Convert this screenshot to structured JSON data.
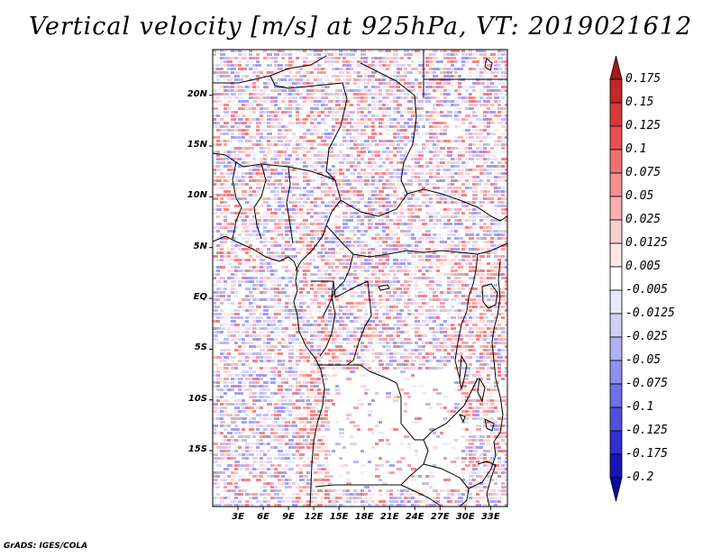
{
  "title": "Vertical velocity [m/s] at 925hPa, VT: 2019021612",
  "footer": "GrADS: IGES/COLA",
  "map": {
    "lat_labels": [
      "20N",
      "15N",
      "10N",
      "5N",
      "EQ",
      "5S",
      "10S",
      "15S"
    ],
    "lon_labels": [
      "3E",
      "6E",
      "9E",
      "12E",
      "15E",
      "18E",
      "21E",
      "24E",
      "27E",
      "30E",
      "33E"
    ],
    "lat_range": [
      -20.5,
      24.5
    ],
    "lon_range": [
      0,
      35
    ]
  },
  "colorbar": {
    "levels": [
      "0.175",
      "0.15",
      "0.125",
      "0.1",
      "0.075",
      "0.05",
      "0.025",
      "0.0125",
      "0.005",
      "-0.005",
      "-0.0125",
      "-0.025",
      "-0.05",
      "-0.075",
      "-0.1",
      "-0.125",
      "-0.175",
      "-0.2"
    ],
    "colors": [
      "#a81818",
      "#c42828",
      "#d83838",
      "#e85050",
      "#f07070",
      "#f49090",
      "#f8b0b0",
      "#fbd0d0",
      "#fde8e8",
      "#ffffff",
      "#e8e8fc",
      "#d0d0f8",
      "#b0b0f4",
      "#9090f0",
      "#7070e8",
      "#5050e0",
      "#3030d0",
      "#1818b8",
      "#0c0c98"
    ]
  }
}
